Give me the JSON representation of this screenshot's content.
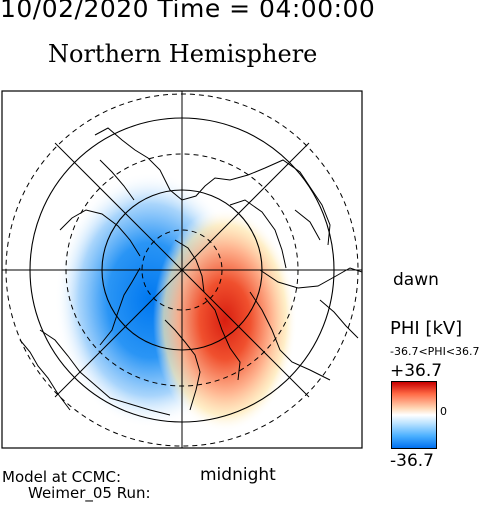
{
  "header": {
    "datetime": "10/02/2020 Time = 04:00:00",
    "title": "Northern Hemisphere"
  },
  "map": {
    "orientation_dawn": "dawn",
    "orientation_midnight": "midnight"
  },
  "colorbar": {
    "title": "PHI [kV]",
    "range_text": "-36.7<PHI<36.7",
    "max_label": "+36.7",
    "zero_label": "0",
    "min_label": "-36.7",
    "colors": {
      "positive": "#c80000",
      "zero": "#ffffff",
      "negative": "#0070f0"
    }
  },
  "footer": {
    "model_line": "Model at CCMC:",
    "run_line": "Weimer_05 Run:"
  }
}
